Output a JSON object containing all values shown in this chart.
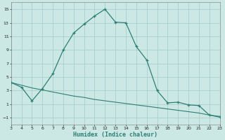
{
  "x": [
    3,
    4,
    5,
    6,
    7,
    8,
    9,
    10,
    11,
    12,
    13,
    14,
    15,
    16,
    17,
    18,
    19,
    20,
    21,
    22,
    23
  ],
  "y_curve": [
    4.2,
    3.5,
    1.5,
    3.3,
    5.5,
    9.0,
    11.5,
    12.8,
    14.0,
    15.0,
    13.1,
    13.0,
    9.5,
    7.5,
    3.0,
    1.2,
    1.3,
    0.9,
    0.8,
    -0.6,
    -0.9
  ],
  "y_line": [
    4.2,
    3.8,
    3.4,
    3.1,
    2.8,
    2.5,
    2.2,
    2.0,
    1.7,
    1.5,
    1.3,
    1.1,
    0.9,
    0.7,
    0.5,
    0.3,
    0.1,
    -0.1,
    -0.3,
    -0.6,
    -0.8
  ],
  "xlim": [
    3,
    23
  ],
  "ylim": [
    -2,
    16
  ],
  "yticks": [
    -1,
    1,
    3,
    5,
    7,
    9,
    11,
    13,
    15
  ],
  "xticks": [
    3,
    4,
    5,
    6,
    7,
    8,
    9,
    10,
    11,
    12,
    13,
    14,
    15,
    16,
    17,
    18,
    19,
    20,
    21,
    22,
    23
  ],
  "xlabel": "Humidex (Indice chaleur)",
  "line_color": "#2d7f74",
  "bg_color": "#cce8e5",
  "grid_color": "#aacfcc"
}
